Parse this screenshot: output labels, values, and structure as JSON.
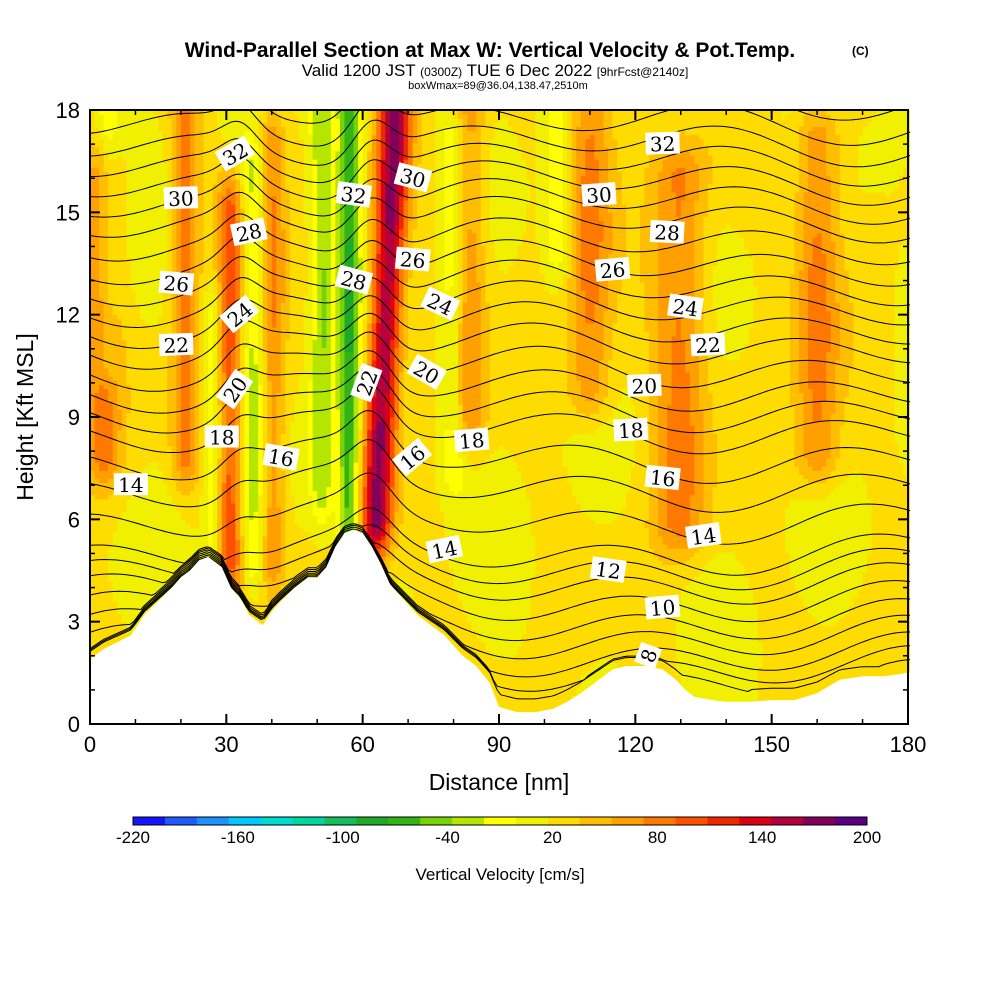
{
  "title": {
    "main": "Wind-Parallel Section at Max W: Vertical Velocity & Pot.Temp.",
    "copyright": "(C)",
    "valid_prefix": "Valid 1200 JST",
    "utc": "(0300Z)",
    "date": "TUE 6 Dec 2022",
    "fcst": "[9hrFcst@2140z]",
    "box": "boxWmax=89@36.04,138.47,2510m"
  },
  "chart_data": {
    "type": "heatmap",
    "xlabel": "Distance [nm]",
    "ylabel": "Height [Kft MSL]",
    "xlim": [
      0,
      182
    ],
    "ylim": [
      0,
      18
    ],
    "x_ticks": [
      0,
      30,
      60,
      90,
      120,
      150,
      180
    ],
    "y_ticks": [
      0,
      3,
      6,
      9,
      12,
      15,
      18
    ],
    "colorbar": {
      "title": "Vertical Velocity [cm/s]",
      "range": [
        -220,
        200
      ],
      "labels": [
        -220,
        -160,
        -100,
        -40,
        20,
        80,
        140,
        200
      ],
      "colors": [
        "#1414ff",
        "#1e5cff",
        "#1e90ff",
        "#00c8ff",
        "#00dcd2",
        "#00d7a0",
        "#14be5a",
        "#1eaa28",
        "#32b414",
        "#78d20a",
        "#b4e600",
        "#ffff00",
        "#f0f000",
        "#ffdc00",
        "#ffbe00",
        "#ffa000",
        "#ff7800",
        "#ff5000",
        "#f02800",
        "#dc0014",
        "#b4003c",
        "#82005a",
        "#5a0082"
      ]
    },
    "terrain_kft": {
      "x": [
        0,
        3,
        9,
        12,
        15,
        18,
        20,
        22,
        24,
        26,
        29,
        31,
        33,
        35,
        38,
        40,
        42,
        45,
        48,
        50,
        52,
        54,
        56,
        58,
        60,
        62,
        64,
        66,
        68,
        70,
        72,
        75,
        78,
        80,
        82,
        85,
        88,
        90,
        94,
        98,
        102,
        105,
        108,
        111,
        113,
        115,
        118,
        122,
        126,
        129,
        131,
        133,
        137,
        140,
        145,
        150,
        155,
        160,
        165,
        170,
        175,
        180,
        182
      ],
      "y": [
        1.9,
        2.2,
        2.6,
        3.2,
        3.6,
        4.0,
        4.3,
        4.5,
        4.8,
        4.9,
        4.6,
        4.0,
        3.7,
        3.2,
        2.9,
        3.3,
        3.6,
        4.0,
        4.3,
        4.3,
        4.6,
        5.2,
        5.6,
        5.7,
        5.6,
        5.2,
        4.7,
        4.1,
        3.8,
        3.5,
        3.2,
        2.9,
        2.6,
        2.3,
        2.0,
        1.7,
        1.2,
        0.5,
        0.35,
        0.35,
        0.45,
        0.65,
        0.9,
        1.2,
        1.4,
        1.6,
        1.7,
        1.7,
        1.6,
        1.3,
        1.0,
        0.8,
        0.7,
        0.65,
        0.65,
        0.7,
        0.7,
        0.9,
        1.3,
        1.4,
        1.4,
        1.5,
        1.5
      ]
    },
    "updrafts": [
      {
        "x": 63,
        "width": 3.5,
        "peak_cm_s": 150,
        "ztop_kft": 18,
        "zbot_kft": 6.0
      },
      {
        "x": 31,
        "width": 3.0,
        "peak_cm_s": 80,
        "ztop_kft": 15,
        "zbot_kft": 5.0
      },
      {
        "x": 3,
        "width": 4.0,
        "peak_cm_s": 60,
        "ztop_kft": 16,
        "zbot_kft": 8.0
      },
      {
        "x": 21,
        "width": 3.0,
        "peak_cm_s": 60,
        "ztop_kft": 18,
        "zbot_kft": 8.0
      },
      {
        "x": 40,
        "width": 3.0,
        "peak_cm_s": 60,
        "ztop_kft": 17,
        "zbot_kft": 5.0
      },
      {
        "x": 83,
        "width": 4.0,
        "peak_cm_s": 60,
        "ztop_kft": 18,
        "zbot_kft": 9.0
      },
      {
        "x": 110,
        "width": 5.0,
        "peak_cm_s": 60,
        "ztop_kft": 18,
        "zbot_kft": 10.0
      },
      {
        "x": 130,
        "width": 6.0,
        "peak_cm_s": 60,
        "ztop_kft": 16,
        "zbot_kft": 6.0
      },
      {
        "x": 160,
        "width": 5.0,
        "peak_cm_s": 60,
        "ztop_kft": 17,
        "zbot_kft": 8.0
      }
    ],
    "downdrafts": [
      {
        "x": 57,
        "width": 2.5,
        "peak_cm_s": -90,
        "ztop_kft": 18,
        "zbot_kft": 6.0
      },
      {
        "x": 51,
        "width": 2.5,
        "peak_cm_s": -60,
        "ztop_kft": 18,
        "zbot_kft": 7.0
      },
      {
        "x": 36,
        "width": 3.0,
        "peak_cm_s": -50,
        "ztop_kft": 16,
        "zbot_kft": 5.0
      },
      {
        "x": 80,
        "width": 3.0,
        "peak_cm_s": -50,
        "ztop_kft": 17,
        "zbot_kft": 8.0
      },
      {
        "x": 27,
        "width": 2.0,
        "peak_cm_s": -40,
        "ztop_kft": 12,
        "zbot_kft": 4.5
      },
      {
        "x": 4,
        "width": 2.5,
        "peak_cm_s": -40,
        "ztop_kft": 18,
        "zbot_kft": 11.0
      },
      {
        "x": 103,
        "width": 3.0,
        "peak_cm_s": -40,
        "ztop_kft": 18,
        "zbot_kft": 14.0
      }
    ],
    "theta_contours": [
      {
        "value": 8,
        "base_kft": 2.0
      },
      {
        "value": 10,
        "base_kft": 3.0
      },
      {
        "value": 12,
        "base_kft": 4.1
      },
      {
        "value": 14,
        "base_kft": 5.0
      },
      {
        "value": 16,
        "base_kft": 6.9
      },
      {
        "value": 18,
        "base_kft": 8.6
      },
      {
        "value": 20,
        "base_kft": 9.8
      },
      {
        "value": 22,
        "base_kft": 11.1
      },
      {
        "value": 24,
        "base_kft": 12.3
      },
      {
        "value": 26,
        "base_kft": 13.5
      },
      {
        "value": 28,
        "base_kft": 14.8
      },
      {
        "value": 30,
        "base_kft": 15.9
      },
      {
        "value": 32,
        "base_kft": 17.0
      }
    ],
    "contour_labels": [
      {
        "text": "32",
        "x": 126,
        "y": 17.0,
        "angle": -2
      },
      {
        "text": "30",
        "x": 112,
        "y": 15.5,
        "angle": -4
      },
      {
        "text": "28",
        "x": 127,
        "y": 14.4,
        "angle": 3
      },
      {
        "text": "26",
        "x": 115,
        "y": 13.3,
        "angle": -5
      },
      {
        "text": "24",
        "x": 131,
        "y": 12.2,
        "angle": 8
      },
      {
        "text": "22",
        "x": 136,
        "y": 11.1,
        "angle": -3
      },
      {
        "text": "20",
        "x": 122,
        "y": 9.9,
        "angle": -2
      },
      {
        "text": "18",
        "x": 119,
        "y": 8.6,
        "angle": -3
      },
      {
        "text": "16",
        "x": 126,
        "y": 7.2,
        "angle": 6
      },
      {
        "text": "14",
        "x": 135,
        "y": 5.5,
        "angle": -8
      },
      {
        "text": "12",
        "x": 114,
        "y": 4.5,
        "angle": 8
      },
      {
        "text": "10",
        "x": 126,
        "y": 3.4,
        "angle": -5
      },
      {
        "text": "8",
        "x": 123,
        "y": 2.0,
        "angle": -70
      },
      {
        "text": "30",
        "x": 20,
        "y": 15.4,
        "angle": -2
      },
      {
        "text": "26",
        "x": 19,
        "y": 12.9,
        "angle": 5
      },
      {
        "text": "22",
        "x": 19,
        "y": 11.1,
        "angle": -2
      },
      {
        "text": "14",
        "x": 9,
        "y": 7.0,
        "angle": 0
      },
      {
        "text": "32",
        "x": 32,
        "y": 16.7,
        "angle": -30
      },
      {
        "text": "28",
        "x": 35,
        "y": 14.4,
        "angle": -12
      },
      {
        "text": "24",
        "x": 33,
        "y": 12.0,
        "angle": -40
      },
      {
        "text": "20",
        "x": 32,
        "y": 9.8,
        "angle": -55
      },
      {
        "text": "18",
        "x": 29,
        "y": 8.4,
        "angle": 0
      },
      {
        "text": "16",
        "x": 42,
        "y": 7.8,
        "angle": 10
      },
      {
        "text": "32",
        "x": 58,
        "y": 15.5,
        "angle": 8
      },
      {
        "text": "28",
        "x": 58,
        "y": 13.0,
        "angle": 15
      },
      {
        "text": "22",
        "x": 61,
        "y": 10.0,
        "angle": -70
      },
      {
        "text": "30",
        "x": 71,
        "y": 16.0,
        "angle": 15
      },
      {
        "text": "26",
        "x": 71,
        "y": 13.6,
        "angle": 5
      },
      {
        "text": "24",
        "x": 77,
        "y": 12.3,
        "angle": 25
      },
      {
        "text": "20",
        "x": 74,
        "y": 10.3,
        "angle": 30
      },
      {
        "text": "16",
        "x": 71,
        "y": 7.8,
        "angle": -40
      },
      {
        "text": "18",
        "x": 84,
        "y": 8.3,
        "angle": -5
      },
      {
        "text": "14",
        "x": 78,
        "y": 5.1,
        "angle": -12
      }
    ]
  }
}
